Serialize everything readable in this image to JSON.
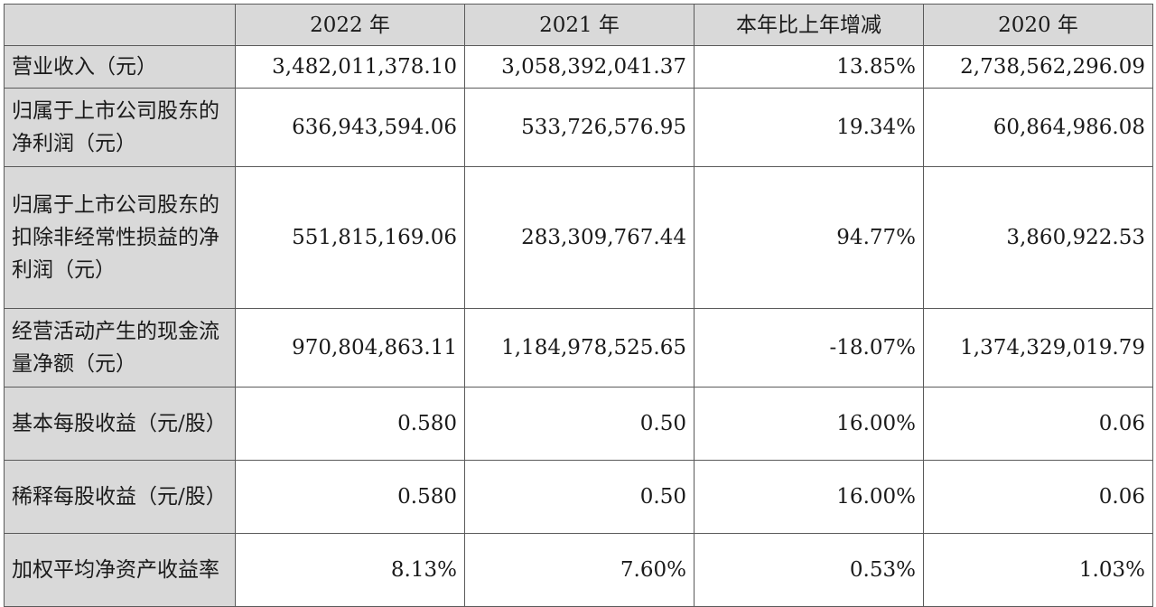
{
  "table": {
    "header": {
      "corner": "",
      "columns": [
        "2022 年",
        "2021 年",
        "本年比上年增减",
        "2020 年"
      ]
    },
    "rows": [
      {
        "label": "营业收入（元）",
        "values": [
          "3,482,011,378.10",
          "3,058,392,041.37",
          "13.85%",
          "2,738,562,296.09"
        ]
      },
      {
        "label": "归属于上市公司股东的净利润（元）",
        "values": [
          "636,943,594.06",
          "533,726,576.95",
          "19.34%",
          "60,864,986.08"
        ]
      },
      {
        "label": "归属于上市公司股东的扣除非经常性损益的净利润（元）",
        "values": [
          "551,815,169.06",
          "283,309,767.44",
          "94.77%",
          "3,860,922.53"
        ]
      },
      {
        "label": "经营活动产生的现金流量净额（元）",
        "values": [
          "970,804,863.11",
          "1,184,978,525.65",
          "-18.07%",
          "1,374,329,019.79"
        ]
      },
      {
        "label": "基本每股收益（元/股）",
        "values": [
          "0.580",
          "0.50",
          "16.00%",
          "0.06"
        ]
      },
      {
        "label": "稀释每股收益（元/股）",
        "values": [
          "0.580",
          "0.50",
          "16.00%",
          "0.06"
        ]
      },
      {
        "label": "加权平均净资产收益率",
        "values": [
          "8.13%",
          "7.60%",
          "0.53%",
          "1.03%"
        ]
      }
    ]
  },
  "colors": {
    "header_background": "#d9d9d9",
    "label_background": "#d9d9d9",
    "border": "#5a5a5a",
    "text": "#1a1a1a"
  }
}
